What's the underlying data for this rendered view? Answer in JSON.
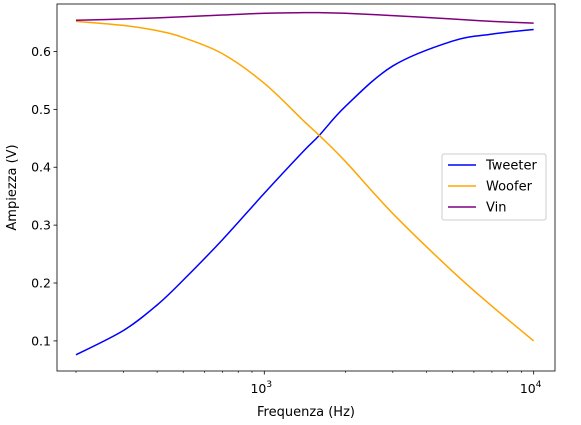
{
  "chart_data": {
    "type": "line",
    "title": "",
    "xlabel": "Frequenza (Hz)",
    "ylabel": "Ampiezza (V)",
    "xscale": "log",
    "xlim": [
      170,
      12000
    ],
    "ylim": [
      0.048,
      0.682
    ],
    "grid": false,
    "legend_position": "center-right",
    "x_ticks": [
      {
        "value": 1000,
        "base": "10",
        "exp": "3"
      },
      {
        "value": 10000,
        "base": "10",
        "exp": "4"
      }
    ],
    "y_ticks": [
      {
        "value": 0.1,
        "label": "0.1"
      },
      {
        "value": 0.2,
        "label": "0.2"
      },
      {
        "value": 0.3,
        "label": "0.3"
      },
      {
        "value": 0.4,
        "label": "0.4"
      },
      {
        "value": 0.5,
        "label": "0.5"
      },
      {
        "value": 0.6,
        "label": "0.6"
      }
    ],
    "x": [
      200,
      300,
      400,
      500,
      700,
      1000,
      1400,
      1600,
      2000,
      3000,
      5000,
      7000,
      10000
    ],
    "series": [
      {
        "name": "Tweeter",
        "color": "#0000ff",
        "values": [
          0.076,
          0.118,
          0.162,
          0.205,
          0.275,
          0.355,
          0.428,
          0.455,
          0.505,
          0.575,
          0.618,
          0.63,
          0.638
        ]
      },
      {
        "name": "Woofer",
        "color": "#ffa500",
        "values": [
          0.652,
          0.645,
          0.636,
          0.624,
          0.596,
          0.545,
          0.48,
          0.455,
          0.41,
          0.32,
          0.22,
          0.16,
          0.1
        ]
      },
      {
        "name": "Vin",
        "color": "#800080",
        "values": [
          0.654,
          0.656,
          0.658,
          0.66,
          0.663,
          0.666,
          0.667,
          0.667,
          0.666,
          0.662,
          0.656,
          0.652,
          0.649
        ]
      }
    ]
  }
}
